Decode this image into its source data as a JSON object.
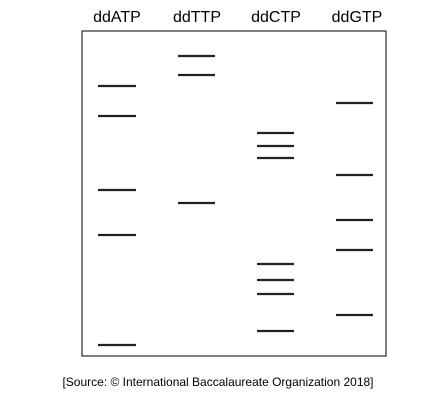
{
  "lanes": [
    {
      "label": "ddATP",
      "bands": [
        86,
        116,
        190,
        235,
        345
      ]
    },
    {
      "label": "ddTTP",
      "bands": [
        56,
        75,
        203
      ]
    },
    {
      "label": "ddCTP",
      "bands": [
        133,
        146,
        158,
        264,
        280,
        294,
        331
      ]
    },
    {
      "label": "ddGTP",
      "bands": [
        103,
        175,
        220,
        250,
        315
      ]
    }
  ],
  "source": "[Source: © International Baccalaureate Organization 2018]",
  "colors": {
    "band": "#222222",
    "frame": "#000000",
    "background": "#ffffff"
  }
}
